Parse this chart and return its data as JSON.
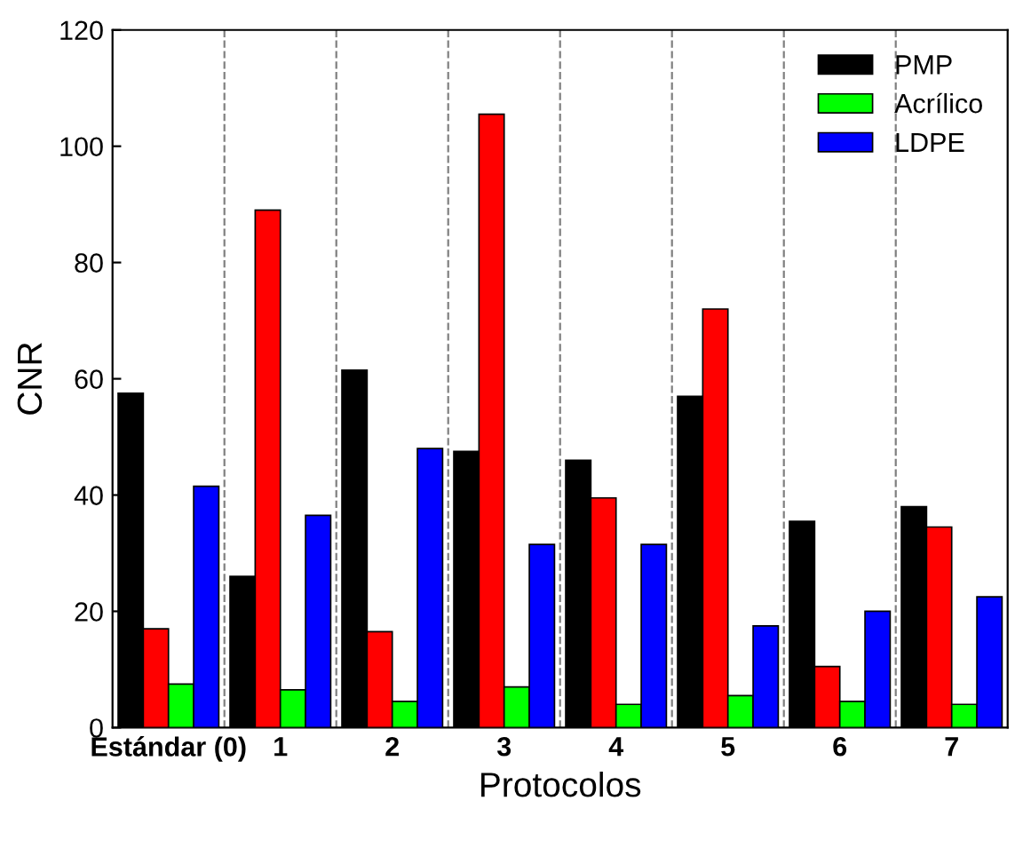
{
  "chart_data": {
    "type": "bar",
    "xlabel": "Protocolos",
    "ylabel": "CNR",
    "categories": [
      "Estándar (0)",
      "1",
      "2",
      "3",
      "4",
      "5",
      "6",
      "7"
    ],
    "series": [
      {
        "name": "PMP",
        "color": "#000000",
        "values": [
          57.5,
          26,
          61.5,
          47.5,
          46,
          57,
          35.5,
          38
        ]
      },
      {
        "color": "#ff0000",
        "values": [
          17,
          89,
          16.5,
          105.5,
          39.5,
          72,
          10.5,
          34.5
        ]
      },
      {
        "name": "Acrílico",
        "color": "#00ff00",
        "values": [
          7.5,
          6.5,
          4.5,
          7,
          4,
          5.5,
          4.5,
          4
        ]
      },
      {
        "name": "LDPE",
        "color": "#0000ff",
        "values": [
          41.5,
          36.5,
          48,
          31.5,
          31.5,
          17.5,
          20,
          22.5
        ]
      }
    ],
    "ylim": [
      0,
      120
    ],
    "yticks": [
      0,
      20,
      40,
      60,
      80,
      100,
      120
    ],
    "grid": "x",
    "legend": "top right"
  }
}
